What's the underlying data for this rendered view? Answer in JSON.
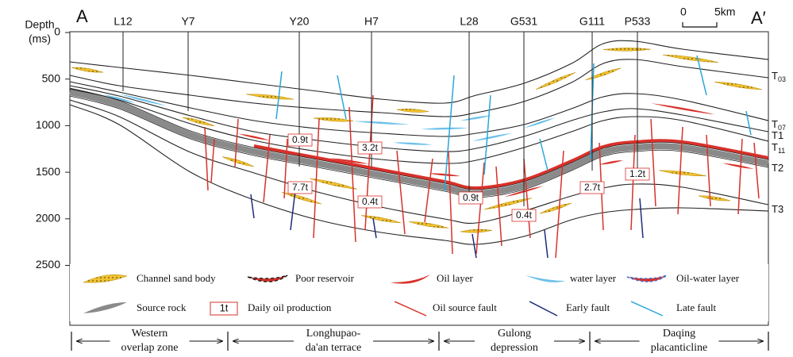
{
  "axis": {
    "title": "Depth",
    "unit": "(ms)",
    "ticks": [
      0,
      500,
      1000,
      1500,
      2000,
      2500
    ]
  },
  "section": {
    "start": "A",
    "end": "A′"
  },
  "scale_bar": {
    "start": "0",
    "end": "5km"
  },
  "wells": [
    "L12",
    "Y7",
    "Y20",
    "H7",
    "L28",
    "G531",
    "G111",
    "P533"
  ],
  "horizons": [
    {
      "base": "T",
      "sub": "03"
    },
    {
      "base": "T",
      "sub": "07"
    },
    {
      "base": "T1"
    },
    {
      "base": "T",
      "sub": "11"
    },
    {
      "base": "T2"
    },
    {
      "base": "T3"
    }
  ],
  "production": [
    "0.9t",
    "3.2t",
    "7.7t",
    "0.4t",
    "0.9t",
    "0.4t",
    "2.7t",
    "1.2t"
  ],
  "legend": [
    {
      "label": "Channel sand body"
    },
    {
      "label": "Poor reservoir"
    },
    {
      "label": "Oil layer"
    },
    {
      "label": "water layer"
    },
    {
      "label": "Oil-water layer"
    },
    {
      "label": "Source rock"
    },
    {
      "icon_text": "1t",
      "label": "Daily oil production"
    },
    {
      "label": "Oil source fault"
    },
    {
      "label": "Early fault"
    },
    {
      "label": "Late fault"
    }
  ],
  "zones": [
    [
      "Western",
      "overlap zone"
    ],
    [
      "Longhupao-",
      "da'an terrace"
    ],
    [
      "Gulong",
      "depression"
    ],
    [
      "Daqing",
      "placanticline"
    ]
  ]
}
